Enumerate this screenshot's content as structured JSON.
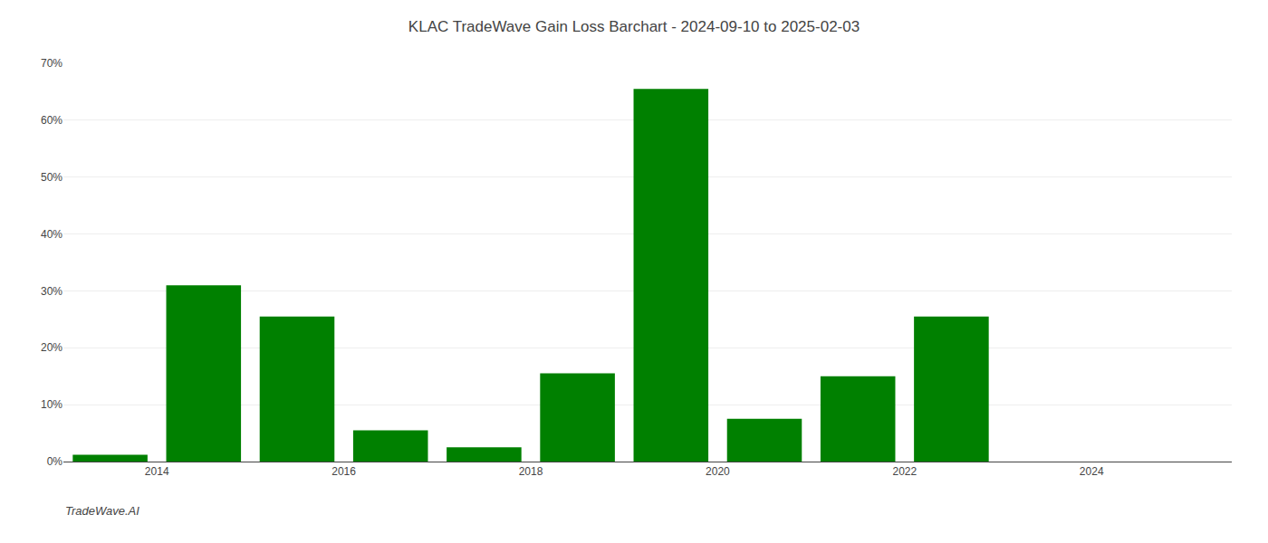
{
  "chart_data": {
    "type": "bar",
    "title": "KLAC TradeWave Gain Loss Barchart - 2024-09-10 to 2025-02-03",
    "annotations": [
      "TradeWave.AI"
    ],
    "x": [
      2013.5,
      2014.5,
      2015.5,
      2016.5,
      2017.5,
      2018.5,
      2019.5,
      2020.5,
      2021.5,
      2022.5,
      2023.5,
      2024.5
    ],
    "values": [
      0.012,
      0.31,
      0.255,
      0.055,
      0.025,
      0.155,
      0.655,
      0.075,
      0.15,
      0.255,
      0.0,
      0.0
    ],
    "color": "#008000",
    "xlim": [
      2013.0,
      2025.5
    ],
    "xticks": [
      2014,
      2016,
      2018,
      2020,
      2022,
      2024
    ],
    "ylim": [
      0,
      0.7
    ],
    "yticks": [
      {
        "value": 0.0,
        "label": "0%"
      },
      {
        "value": 0.1,
        "label": "10%"
      },
      {
        "value": 0.2,
        "label": "20%"
      },
      {
        "value": 0.3,
        "label": "30%"
      },
      {
        "value": 0.4,
        "label": "40%"
      },
      {
        "value": 0.5,
        "label": "50%"
      },
      {
        "value": 0.6,
        "label": "60%"
      },
      {
        "value": 0.7,
        "label": "70%"
      }
    ],
    "grid": true
  }
}
